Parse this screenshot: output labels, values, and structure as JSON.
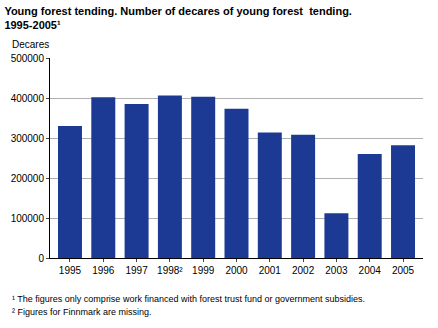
{
  "chart_data": {
    "type": "bar",
    "title": "Young forest tending. Number of decares of young forest  tending.\n1995-2005¹",
    "y_label": "Decares",
    "categories": [
      "1995",
      "1996",
      "1997",
      "1998²",
      "1999",
      "2000",
      "2001",
      "2002",
      "2003",
      "2004",
      "2005"
    ],
    "values": [
      330000,
      402000,
      385000,
      406000,
      403000,
      373000,
      314000,
      308000,
      112000,
      260000,
      282000
    ],
    "color": "#1c3a94",
    "ylim": [
      0,
      500000
    ],
    "yticks": [
      0,
      100000,
      200000,
      300000,
      400000,
      500000
    ],
    "grid": true,
    "annotations": [
      "¹ The figures only comprise work financed with forest trust fund or government subsidies.",
      "² Figures for Finnmark are missing."
    ]
  }
}
